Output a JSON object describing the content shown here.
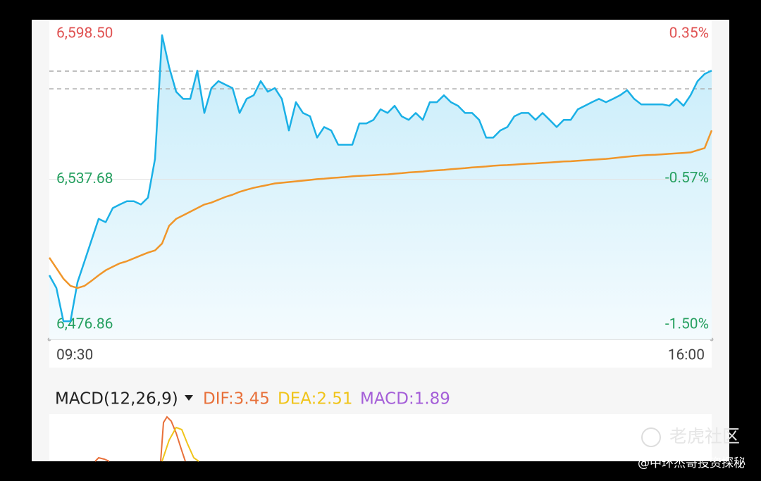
{
  "chart_data": {
    "type": "line",
    "categories": [
      "09:30",
      null,
      null,
      null,
      null,
      null,
      null,
      null,
      null,
      null,
      null,
      null,
      null,
      null,
      null,
      null,
      null,
      null,
      null,
      null,
      null,
      null,
      null,
      null,
      null,
      null,
      null,
      null,
      null,
      null,
      null,
      null,
      null,
      null,
      null,
      null,
      null,
      null,
      null,
      null,
      null,
      null,
      null,
      null,
      null,
      null,
      null,
      null,
      null,
      null,
      null,
      null,
      null,
      null,
      null,
      null,
      null,
      null,
      null,
      null,
      null,
      null,
      null,
      null,
      null,
      null,
      null,
      null,
      null,
      null,
      null,
      null,
      null,
      null,
      null,
      null,
      null,
      null,
      null,
      null,
      null,
      null,
      null,
      null,
      null,
      null,
      null,
      null,
      null,
      null,
      null,
      null,
      null,
      null,
      "16:00"
    ],
    "series": [
      {
        "color": "#1ab0e6",
        "area": true,
        "values": [
          6497.5,
          6492.2,
          6478.3,
          6478.3,
          6494.6,
          6503.4,
          6512.3,
          6521.1,
          6519.7,
          6525.6,
          6527.1,
          6528.5,
          6528.5,
          6527.1,
          6530.0,
          6546.2,
          6597.9,
          6584.6,
          6574.3,
          6571.3,
          6571.3,
          6583.1,
          6565.4,
          6575.8,
          6578.7,
          6577.2,
          6575.8,
          6565.4,
          6571.3,
          6572.8,
          6578.7,
          6574.3,
          6575.8,
          6571.3,
          6558.1,
          6569.9,
          6565.4,
          6564.0,
          6555.1,
          6559.5,
          6558.1,
          6552.1,
          6552.1,
          6552.1,
          6561.0,
          6561.0,
          6562.5,
          6566.9,
          6565.4,
          6568.4,
          6564.0,
          6562.5,
          6565.4,
          6562.5,
          6569.9,
          6569.9,
          6572.8,
          6569.9,
          6568.4,
          6565.4,
          6565.4,
          6562.5,
          6555.1,
          6555.1,
          6558.1,
          6559.5,
          6564.0,
          6565.4,
          6565.4,
          6562.5,
          6565.4,
          6562.5,
          6559.5,
          6562.5,
          6562.5,
          6566.9,
          6568.4,
          6569.9,
          6571.3,
          6569.9,
          6571.3,
          6572.8,
          6574.9,
          6571.3,
          6569.0,
          6569.0,
          6569.0,
          6569.0,
          6568.4,
          6571.3,
          6568.4,
          6572.8,
          6578.7,
          6581.7,
          6583.1
        ]
      },
      {
        "color": "#f0962a",
        "values": [
          6504.9,
          6500.5,
          6496.1,
          6493.1,
          6492.2,
          6493.1,
          6495.2,
          6497.5,
          6499.6,
          6501.1,
          6502.5,
          6503.4,
          6504.6,
          6505.8,
          6507.0,
          6507.9,
          6510.8,
          6518.2,
          6521.1,
          6522.6,
          6524.1,
          6525.6,
          6527.1,
          6527.9,
          6529.1,
          6530.3,
          6531.2,
          6532.4,
          6533.3,
          6534.1,
          6534.7,
          6535.3,
          6535.9,
          6536.2,
          6536.5,
          6536.8,
          6537.1,
          6537.4,
          6537.7,
          6537.9,
          6538.2,
          6538.4,
          6538.6,
          6538.9,
          6539.1,
          6539.2,
          6539.4,
          6539.6,
          6539.7,
          6540.0,
          6540.2,
          6540.5,
          6540.7,
          6540.9,
          6541.2,
          6541.4,
          6541.6,
          6541.9,
          6542.1,
          6542.3,
          6542.6,
          6542.8,
          6543.0,
          6543.3,
          6543.5,
          6543.6,
          6543.8,
          6544.0,
          6544.2,
          6544.3,
          6544.5,
          6544.7,
          6544.9,
          6545.1,
          6545.2,
          6545.4,
          6545.6,
          6545.8,
          6546.0,
          6546.2,
          6546.5,
          6546.8,
          6547.1,
          6547.4,
          6547.6,
          6547.8,
          6547.9,
          6548.1,
          6548.3,
          6548.5,
          6548.7,
          6548.9,
          6549.8,
          6550.7,
          6558.1
        ]
      }
    ],
    "ylim": [
      6476.86,
      6598.5
    ],
    "yticks": [
      {
        "value": 6598.5,
        "label": "6,598.50"
      },
      {
        "value": 6537.68,
        "label": "6,537.68"
      },
      {
        "value": 6476.86,
        "label": "6,476.86"
      }
    ],
    "y2lim": [
      -1.5,
      0.35
    ],
    "y2ticks": [
      {
        "value": 0.35,
        "label": "0.35%"
      },
      {
        "value": -0.57,
        "label": "-0.57%"
      },
      {
        "value": -1.5,
        "label": "-1.50%"
      }
    ],
    "reference_lines": [
      6582.9,
      6575.5
    ],
    "grid": true
  },
  "macd": {
    "title": "MACD(12,26,9)",
    "dif": "DIF:3.45",
    "dea": "DEA:2.51",
    "macd": "MACD:1.89"
  },
  "watermark": {
    "brand": "老虎社区",
    "author": "@中环杰哥投资探秘"
  }
}
